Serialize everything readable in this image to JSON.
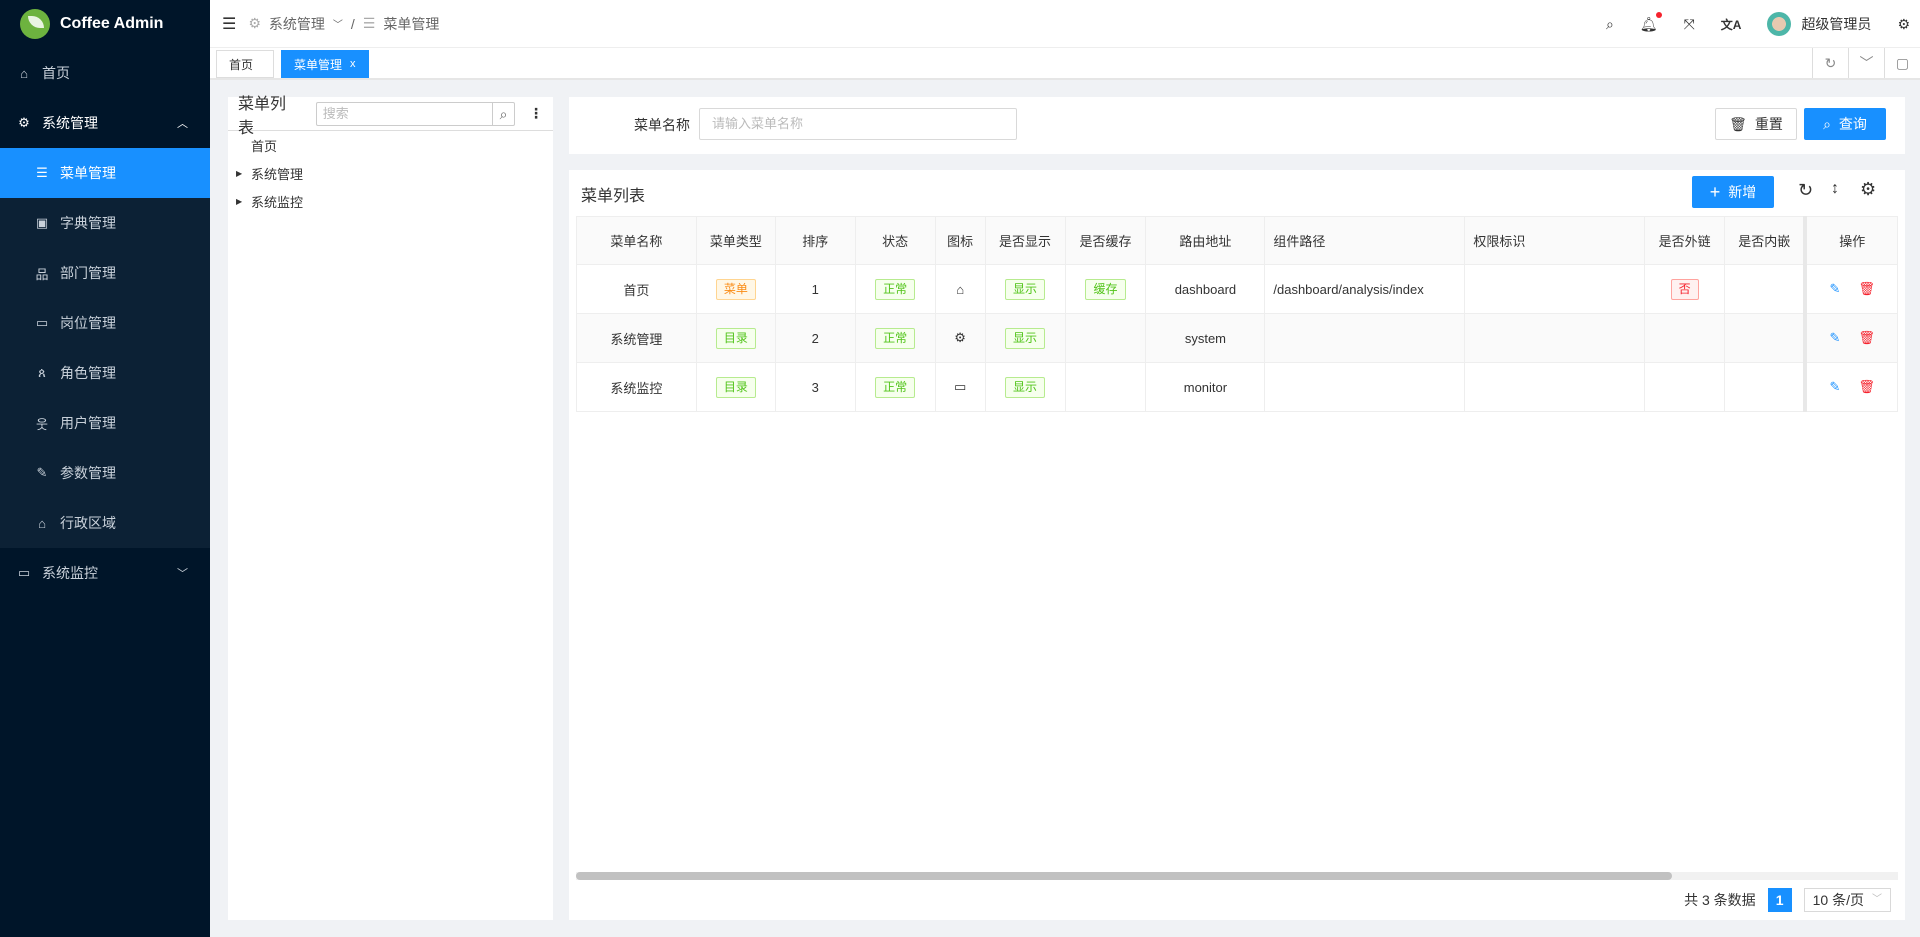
{
  "app": {
    "title": "Coffee Admin"
  },
  "sidebar": {
    "items": [
      {
        "label": "首页",
        "icon": "home-icon"
      },
      {
        "label": "系统管理",
        "icon": "gear-icon",
        "expanded": true,
        "children": [
          {
            "label": "菜单管理",
            "icon": "list-icon",
            "active": true
          },
          {
            "label": "字典管理",
            "icon": "dictionary-icon"
          },
          {
            "label": "部门管理",
            "icon": "org-chart-icon"
          },
          {
            "label": "岗位管理",
            "icon": "id-card-icon"
          },
          {
            "label": "角色管理",
            "icon": "users-icon"
          },
          {
            "label": "用户管理",
            "icon": "user-icon"
          },
          {
            "label": "参数管理",
            "icon": "wrench-icon"
          },
          {
            "label": "行政区域",
            "icon": "bank-icon"
          }
        ]
      },
      {
        "label": "系统监控",
        "icon": "monitor-icon",
        "expanded": false
      }
    ]
  },
  "header": {
    "breadcrumb": [
      "系统管理",
      "菜单管理"
    ],
    "user": "超级管理员",
    "notification_dot": true
  },
  "tabs": [
    {
      "label": "首页"
    },
    {
      "label": "菜单管理",
      "active": true,
      "close": "x"
    }
  ],
  "tree": {
    "title": "菜单列表",
    "search_placeholder": "搜索",
    "nodes": [
      "首页",
      "系统管理",
      "系统监控"
    ]
  },
  "search": {
    "label": "菜单名称",
    "placeholder": "请输入菜单名称",
    "reset": "重置",
    "query": "查询"
  },
  "table": {
    "title": "菜单列表",
    "add": "新增",
    "columns": [
      "菜单名称",
      "菜单类型",
      "排序",
      "状态",
      "图标",
      "是否显示",
      "是否缓存",
      "路由地址",
      "组件路径",
      "权限标识",
      "是否外链",
      "是否内嵌",
      "操作"
    ],
    "rows": [
      {
        "name": "首页",
        "type": "菜单",
        "order": "1",
        "status": "正常",
        "icon": "home-icon",
        "visible": "显示",
        "cache": "缓存",
        "route": "dashboard",
        "component": "/dashboard/analysis/index",
        "perm": "",
        "external": "否",
        "embed": ""
      },
      {
        "name": "系统管理",
        "type": "目录",
        "order": "2",
        "status": "正常",
        "icon": "gear-icon",
        "visible": "显示",
        "cache": "",
        "route": "system",
        "component": "",
        "perm": "",
        "external": "",
        "embed": ""
      },
      {
        "name": "系统监控",
        "type": "目录",
        "order": "3",
        "status": "正常",
        "icon": "monitor-icon",
        "visible": "显示",
        "cache": "",
        "route": "monitor",
        "component": "",
        "perm": "",
        "external": "",
        "embed": ""
      }
    ]
  },
  "pagination": {
    "total": "共 3 条数据",
    "page": "1",
    "size": "10 条/页"
  }
}
